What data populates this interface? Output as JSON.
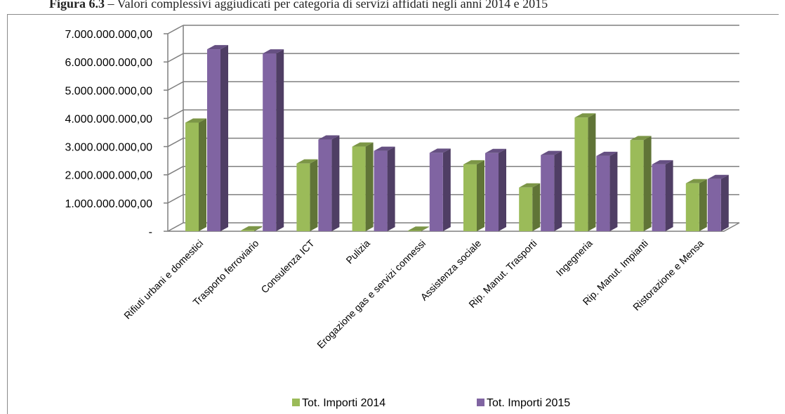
{
  "caption": {
    "label": "Figura 6.3",
    "text": "– Valori complessivi aggiudicati per categoria di servizi affidati negli anni 2014 e 2015"
  },
  "chart_data": {
    "type": "bar",
    "style": "3d-clustered-column",
    "title": "",
    "xlabel": "",
    "ylabel": "",
    "ylim": [
      0,
      7000000000
    ],
    "yticks": [
      0,
      1000000000,
      2000000000,
      3000000000,
      4000000000,
      5000000000,
      6000000000,
      7000000000
    ],
    "ytick_labels": [
      "-",
      "1.000.000.000,00",
      "2.000.000.000,00",
      "3.000.000.000,00",
      "4.000.000.000,00",
      "5.000.000.000,00",
      "6.000.000.000,00",
      "7.000.000.000,00"
    ],
    "grid": true,
    "legend_position": "bottom",
    "categories": [
      "Rifiuti urbani e domestici",
      "Trasporto ferroviario",
      "Consulenza ICT",
      "Pulizia",
      "Erogazione gas e servizi connessi",
      "Assistenza sociale",
      "Rip. Manut. Trasporti",
      "Ingegneria",
      "Rip. Manut. Impianti",
      "Ristorazione e Mensa"
    ],
    "series": [
      {
        "name": "Tot. Importi 2014",
        "color": "#9bbb59",
        "values": [
          3850000000,
          30000000,
          2400000000,
          3000000000,
          20000000,
          2370000000,
          1550000000,
          4030000000,
          3230000000,
          1700000000
        ]
      },
      {
        "name": "Tot. Importi 2015",
        "color": "#8064a2",
        "values": [
          6450000000,
          6300000000,
          3250000000,
          2850000000,
          2780000000,
          2770000000,
          2700000000,
          2670000000,
          2370000000,
          1850000000
        ]
      }
    ]
  }
}
